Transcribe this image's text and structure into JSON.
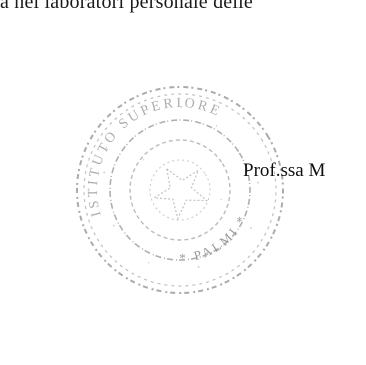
{
  "document": {
    "top_text": "a nei laboratori personale delle",
    "signature_name": "Prof.ssa M",
    "stamp": {
      "kind": "official-round-seal",
      "arc_text": "ISTITUTO SUPERIORE",
      "bottom_text": "PALMI",
      "ink_color": "#8a8a8a"
    }
  }
}
